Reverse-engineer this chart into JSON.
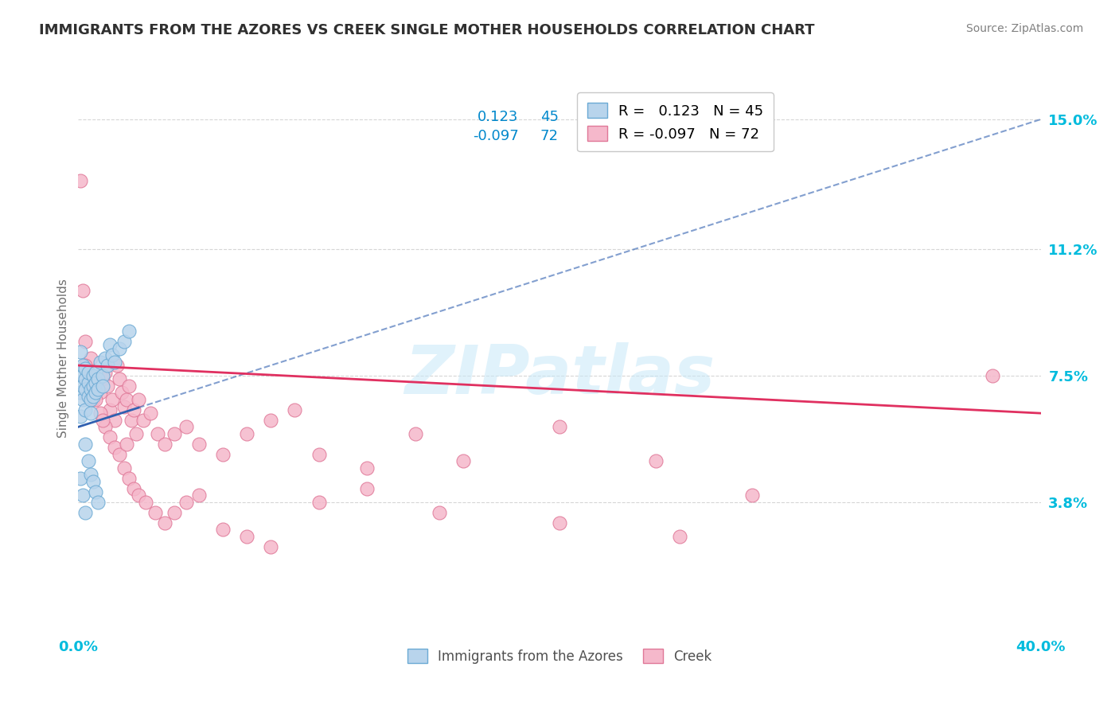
{
  "title": "IMMIGRANTS FROM THE AZORES VS CREEK SINGLE MOTHER HOUSEHOLDS CORRELATION CHART",
  "source_text": "Source: ZipAtlas.com",
  "ylabel": "Single Mother Households",
  "xlim": [
    0.0,
    0.4
  ],
  "ylim": [
    0.0,
    0.16
  ],
  "xtick_positions": [
    0.0,
    0.1,
    0.2,
    0.3,
    0.4
  ],
  "xtick_labels": [
    "0.0%",
    "",
    "",
    "",
    "40.0%"
  ],
  "ytick_positions": [
    0.038,
    0.075,
    0.112,
    0.15
  ],
  "ytick_labels": [
    "3.8%",
    "7.5%",
    "11.2%",
    "15.0%"
  ],
  "r1": 0.123,
  "r2": -0.097,
  "n1": 45,
  "n2": 72,
  "blue_color": "#b8d4ec",
  "blue_edge": "#6baad4",
  "pink_color": "#f5b8cb",
  "pink_edge": "#e07898",
  "trend1_color": "#3060b0",
  "trend2_color": "#e03060",
  "grid_color": "#cccccc",
  "title_color": "#303030",
  "source_color": "#808080",
  "axis_tick_color": "#00bbdd",
  "watermark_text": "ZIPatlas",
  "watermark_color": "#c8e8f8",
  "legend_label1": "Immigrants from the Azores",
  "legend_label2": "Creek",
  "blue_scatter_x": [
    0.001,
    0.001,
    0.001,
    0.002,
    0.002,
    0.002,
    0.002,
    0.003,
    0.003,
    0.003,
    0.003,
    0.004,
    0.004,
    0.004,
    0.005,
    0.005,
    0.005,
    0.006,
    0.006,
    0.006,
    0.007,
    0.007,
    0.007,
    0.008,
    0.008,
    0.009,
    0.01,
    0.01,
    0.011,
    0.012,
    0.013,
    0.014,
    0.015,
    0.017,
    0.019,
    0.021,
    0.001,
    0.002,
    0.003,
    0.003,
    0.004,
    0.005,
    0.006,
    0.007,
    0.008
  ],
  "blue_scatter_y": [
    0.063,
    0.07,
    0.082,
    0.075,
    0.078,
    0.072,
    0.068,
    0.074,
    0.071,
    0.077,
    0.065,
    0.073,
    0.069,
    0.076,
    0.071,
    0.068,
    0.064,
    0.075,
    0.072,
    0.069,
    0.076,
    0.073,
    0.07,
    0.074,
    0.071,
    0.079,
    0.075,
    0.072,
    0.08,
    0.078,
    0.084,
    0.081,
    0.079,
    0.083,
    0.085,
    0.088,
    0.045,
    0.04,
    0.035,
    0.055,
    0.05,
    0.046,
    0.044,
    0.041,
    0.038
  ],
  "pink_scatter_x": [
    0.001,
    0.002,
    0.003,
    0.004,
    0.005,
    0.006,
    0.007,
    0.008,
    0.009,
    0.01,
    0.011,
    0.012,
    0.013,
    0.014,
    0.015,
    0.016,
    0.017,
    0.018,
    0.019,
    0.02,
    0.021,
    0.022,
    0.023,
    0.024,
    0.025,
    0.027,
    0.03,
    0.033,
    0.036,
    0.04,
    0.045,
    0.05,
    0.06,
    0.07,
    0.08,
    0.09,
    0.1,
    0.12,
    0.14,
    0.16,
    0.2,
    0.24,
    0.28,
    0.003,
    0.005,
    0.007,
    0.009,
    0.011,
    0.013,
    0.015,
    0.017,
    0.019,
    0.021,
    0.023,
    0.025,
    0.028,
    0.032,
    0.036,
    0.04,
    0.045,
    0.05,
    0.06,
    0.07,
    0.08,
    0.1,
    0.12,
    0.15,
    0.2,
    0.25,
    0.38,
    0.01,
    0.02
  ],
  "pink_scatter_y": [
    0.132,
    0.1,
    0.085,
    0.075,
    0.08,
    0.068,
    0.073,
    0.071,
    0.07,
    0.074,
    0.076,
    0.072,
    0.065,
    0.068,
    0.062,
    0.078,
    0.074,
    0.07,
    0.066,
    0.068,
    0.072,
    0.062,
    0.065,
    0.058,
    0.068,
    0.062,
    0.064,
    0.058,
    0.055,
    0.058,
    0.06,
    0.055,
    0.052,
    0.058,
    0.062,
    0.065,
    0.052,
    0.048,
    0.058,
    0.05,
    0.06,
    0.05,
    0.04,
    0.078,
    0.072,
    0.068,
    0.064,
    0.06,
    0.057,
    0.054,
    0.052,
    0.048,
    0.045,
    0.042,
    0.04,
    0.038,
    0.035,
    0.032,
    0.035,
    0.038,
    0.04,
    0.03,
    0.028,
    0.025,
    0.038,
    0.042,
    0.035,
    0.032,
    0.028,
    0.075,
    0.062,
    0.055
  ],
  "blue_trend_x": [
    0.0,
    0.4
  ],
  "blue_trend_y_start": 0.06,
  "blue_trend_y_end": 0.15,
  "pink_trend_x": [
    0.0,
    0.4
  ],
  "pink_trend_y_start": 0.078,
  "pink_trend_y_end": 0.064
}
